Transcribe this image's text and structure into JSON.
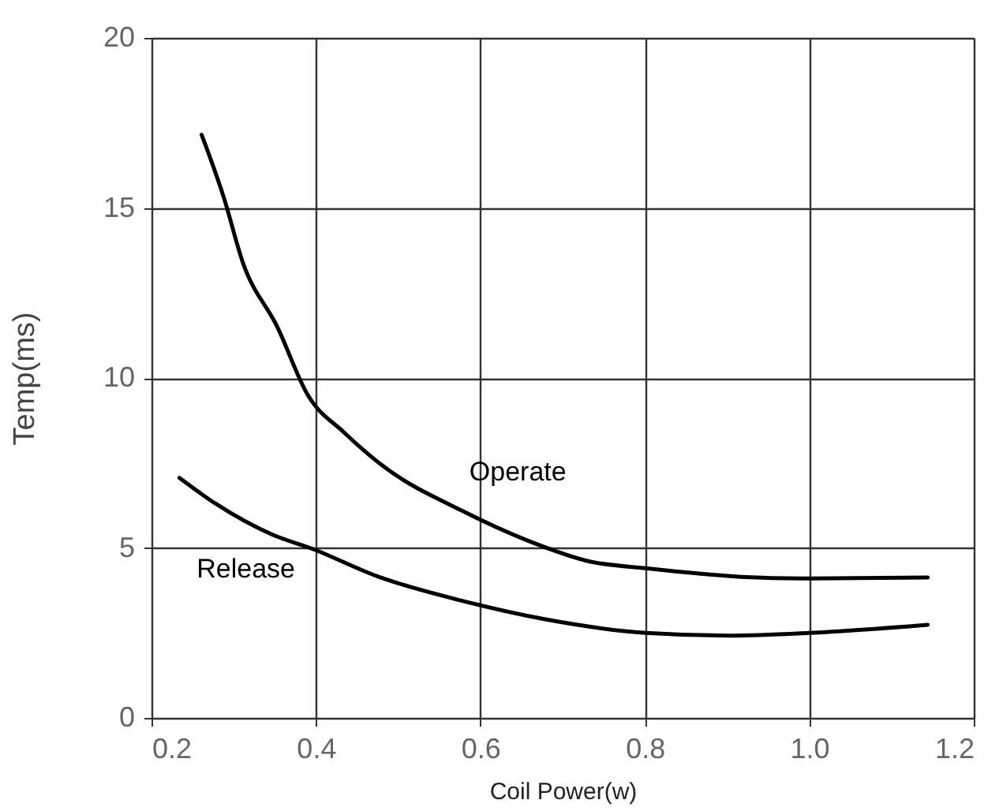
{
  "chart_data": {
    "type": "line",
    "xlabel": "Coil Power(w)",
    "ylabel": "Temp(ms)",
    "xlim": [
      0.2,
      1.2
    ],
    "xticks": [
      {
        "value": 0.2,
        "label": "0.2"
      },
      {
        "value": 0.4,
        "label": "0.4"
      },
      {
        "value": 0.6,
        "label": "0.6"
      },
      {
        "value": 0.8,
        "label": "0.8"
      },
      {
        "value": 1.0,
        "label": "1.0"
      },
      {
        "value": 1.2,
        "label": "1.2"
      }
    ],
    "ylim": [
      0,
      20
    ],
    "yticks": [
      0,
      5,
      10,
      15,
      20
    ],
    "grid": true,
    "marker": "none",
    "line_style": "solid",
    "series": [
      {
        "name": "Operate",
        "color": "#000000",
        "x": [
          0.261,
          0.288,
          0.311,
          0.353,
          0.39,
          0.434,
          0.482,
          0.577,
          0.659,
          0.733,
          0.801,
          0.917,
          1.0,
          1.144
        ],
        "values": [
          17.15,
          15.3,
          13.4,
          11.5,
          9.5,
          8.4,
          7.4,
          6.1,
          5.2,
          4.6,
          4.4,
          4.15,
          4.1,
          4.13
        ]
      },
      {
        "name": "Release",
        "color": "#000000",
        "x": [
          0.234,
          0.278,
          0.346,
          0.397,
          0.475,
          0.577,
          0.679,
          0.801,
          0.903,
          1.0,
          1.144
        ],
        "values": [
          7.06,
          6.3,
          5.4,
          4.96,
          4.16,
          3.45,
          2.9,
          2.5,
          2.42,
          2.5,
          2.74
        ]
      }
    ]
  }
}
